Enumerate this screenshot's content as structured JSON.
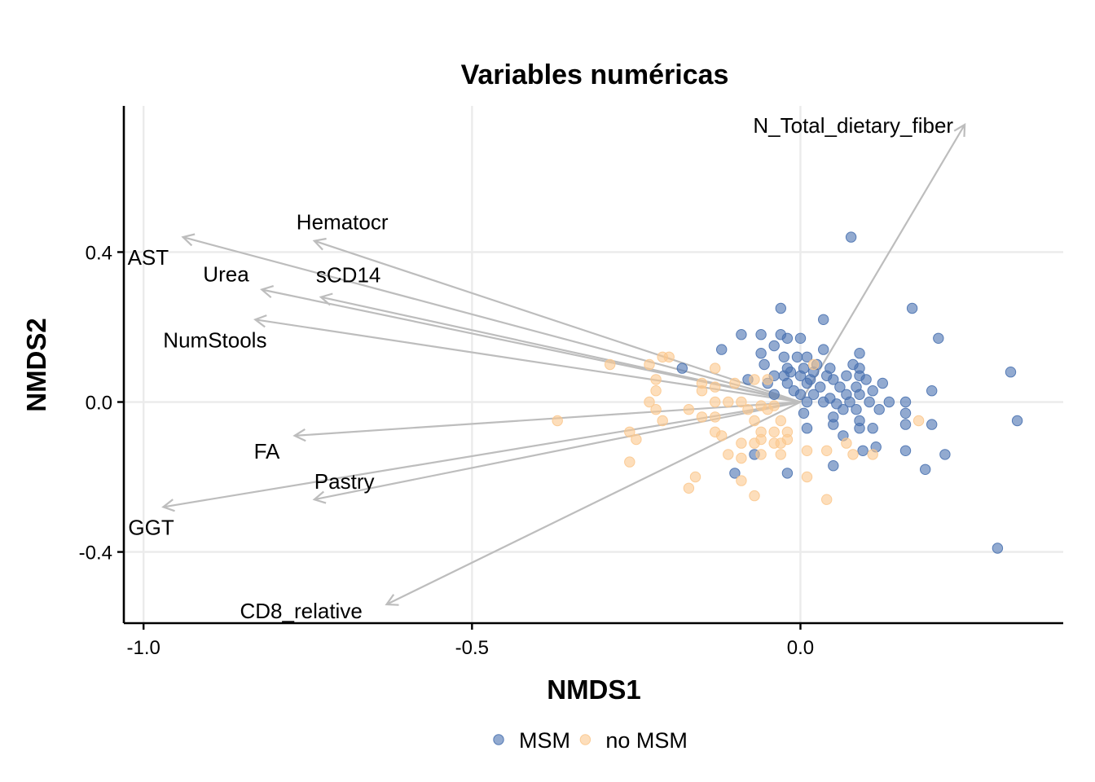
{
  "chart_data": {
    "type": "scatter",
    "title": "Variables numéricas",
    "xlabel": "NMDS1",
    "ylabel": "NMDS2",
    "xlim": [
      -1.03,
      0.4
    ],
    "ylim": [
      -0.59,
      0.79
    ],
    "x_ticks": [
      {
        "value": -1.0,
        "label": "-1.0"
      },
      {
        "value": -0.5,
        "label": "-0.5"
      },
      {
        "value": 0.0,
        "label": "0.0"
      }
    ],
    "y_ticks": [
      {
        "value": -0.4,
        "label": "-0.4"
      },
      {
        "value": 0.0,
        "label": "0.0"
      },
      {
        "value": 0.4,
        "label": "0.4"
      }
    ],
    "grid": true,
    "legend": {
      "position": "bottom"
    },
    "series": [
      {
        "name": "MSM",
        "color": "#4a72b0",
        "points": [
          [
            0.077,
            0.44
          ],
          [
            0.17,
            0.25
          ],
          [
            0.035,
            0.22
          ],
          [
            -0.03,
            0.25
          ],
          [
            0.21,
            0.17
          ],
          [
            0.32,
            0.08
          ],
          [
            0.33,
            -0.05
          ],
          [
            0.3,
            -0.39
          ],
          [
            -0.09,
            0.18
          ],
          [
            -0.06,
            0.18
          ],
          [
            -0.03,
            0.18
          ],
          [
            -0.02,
            0.17
          ],
          [
            0.0,
            0.17
          ],
          [
            -0.04,
            0.15
          ],
          [
            0.035,
            0.14
          ],
          [
            -0.12,
            0.14
          ],
          [
            -0.18,
            0.09
          ],
          [
            -0.06,
            0.13
          ],
          [
            -0.025,
            0.12
          ],
          [
            -0.005,
            0.12
          ],
          [
            0.01,
            0.12
          ],
          [
            0.09,
            0.13
          ],
          [
            0.08,
            0.1
          ],
          [
            0.09,
            0.09
          ],
          [
            0.025,
            0.1
          ],
          [
            -0.055,
            0.1
          ],
          [
            -0.02,
            0.09
          ],
          [
            -0.015,
            0.08
          ],
          [
            0.005,
            0.09
          ],
          [
            0.02,
            0.08
          ],
          [
            0.045,
            0.09
          ],
          [
            -0.04,
            0.07
          ],
          [
            -0.025,
            0.07
          ],
          [
            0.0,
            0.07
          ],
          [
            0.015,
            0.06
          ],
          [
            0.04,
            0.07
          ],
          [
            0.05,
            0.06
          ],
          [
            0.07,
            0.07
          ],
          [
            0.09,
            0.07
          ],
          [
            0.1,
            0.06
          ],
          [
            0.125,
            0.05
          ],
          [
            -0.08,
            0.06
          ],
          [
            -0.05,
            0.05
          ],
          [
            -0.02,
            0.05
          ],
          [
            0.01,
            0.05
          ],
          [
            0.03,
            0.04
          ],
          [
            0.06,
            0.04
          ],
          [
            0.085,
            0.04
          ],
          [
            0.11,
            0.03
          ],
          [
            -0.01,
            0.03
          ],
          [
            -0.04,
            0.02
          ],
          [
            0.0,
            0.02
          ],
          [
            0.02,
            0.02
          ],
          [
            0.045,
            0.01
          ],
          [
            0.07,
            0.02
          ],
          [
            0.09,
            0.02
          ],
          [
            0.16,
            0.0
          ],
          [
            0.2,
            0.03
          ],
          [
            0.135,
            0.0
          ],
          [
            0.105,
            0.0
          ],
          [
            0.075,
            0.0
          ],
          [
            0.055,
            -0.005
          ],
          [
            0.035,
            0.0
          ],
          [
            0.01,
            0.0
          ],
          [
            0.12,
            -0.02
          ],
          [
            0.085,
            -0.02
          ],
          [
            0.065,
            -0.02
          ],
          [
            0.16,
            -0.03
          ],
          [
            0.005,
            -0.03
          ],
          [
            0.05,
            -0.04
          ],
          [
            0.09,
            -0.05
          ],
          [
            0.16,
            -0.06
          ],
          [
            0.2,
            -0.06
          ],
          [
            0.11,
            -0.07
          ],
          [
            0.05,
            -0.06
          ],
          [
            0.09,
            -0.07
          ],
          [
            0.01,
            -0.07
          ],
          [
            0.065,
            -0.09
          ],
          [
            0.115,
            -0.12
          ],
          [
            0.095,
            -0.13
          ],
          [
            0.16,
            -0.13
          ],
          [
            0.22,
            -0.14
          ],
          [
            -0.07,
            -0.14
          ],
          [
            0.05,
            -0.17
          ],
          [
            -0.1,
            -0.19
          ],
          [
            -0.02,
            -0.19
          ],
          [
            0.19,
            -0.18
          ]
        ]
      },
      {
        "name": "no MSM",
        "color": "#fbc88e",
        "points": [
          [
            -0.2,
            0.12
          ],
          [
            -0.29,
            0.1
          ],
          [
            -0.23,
            0.1
          ],
          [
            -0.13,
            0.09
          ],
          [
            -0.22,
            0.06
          ],
          [
            -0.15,
            0.05
          ],
          [
            -0.13,
            0.04
          ],
          [
            -0.1,
            0.05
          ],
          [
            -0.07,
            0.06
          ],
          [
            -0.05,
            0.06
          ],
          [
            -0.22,
            0.03
          ],
          [
            -0.15,
            0.03
          ],
          [
            -0.23,
            0.0
          ],
          [
            -0.22,
            -0.02
          ],
          [
            -0.17,
            -0.02
          ],
          [
            -0.13,
            0.0
          ],
          [
            -0.09,
            0.0
          ],
          [
            -0.11,
            0.0
          ],
          [
            -0.08,
            -0.02
          ],
          [
            -0.06,
            -0.01
          ],
          [
            -0.05,
            -0.02
          ],
          [
            -0.04,
            -0.01
          ],
          [
            -0.15,
            -0.04
          ],
          [
            -0.13,
            -0.04
          ],
          [
            -0.21,
            -0.05
          ],
          [
            -0.37,
            -0.05
          ],
          [
            -0.07,
            -0.05
          ],
          [
            -0.03,
            -0.05
          ],
          [
            -0.26,
            -0.08
          ],
          [
            -0.13,
            -0.08
          ],
          [
            -0.12,
            -0.09
          ],
          [
            -0.06,
            -0.08
          ],
          [
            -0.04,
            -0.08
          ],
          [
            -0.02,
            -0.08
          ],
          [
            -0.06,
            -0.1
          ],
          [
            -0.02,
            -0.1
          ],
          [
            -0.09,
            -0.11
          ],
          [
            -0.07,
            -0.11
          ],
          [
            -0.04,
            -0.11
          ],
          [
            -0.03,
            -0.11
          ],
          [
            -0.25,
            -0.1
          ],
          [
            -0.11,
            -0.14
          ],
          [
            -0.09,
            -0.15
          ],
          [
            -0.06,
            -0.14
          ],
          [
            -0.03,
            -0.14
          ],
          [
            0.01,
            -0.13
          ],
          [
            0.04,
            -0.13
          ],
          [
            0.08,
            -0.14
          ],
          [
            0.11,
            -0.14
          ],
          [
            -0.26,
            -0.16
          ],
          [
            -0.16,
            -0.2
          ],
          [
            -0.09,
            -0.21
          ],
          [
            0.01,
            -0.2
          ],
          [
            -0.17,
            -0.23
          ],
          [
            -0.07,
            -0.25
          ],
          [
            0.04,
            -0.26
          ],
          [
            0.18,
            -0.05
          ],
          [
            0.07,
            -0.11
          ],
          [
            0.02,
            0.1
          ],
          [
            -0.21,
            0.12
          ]
        ]
      }
    ],
    "vectors": [
      {
        "label": "N_Total_dietary_fiber",
        "x": 0.25,
        "y": 0.74
      },
      {
        "label": "Hematocr",
        "x": -0.74,
        "y": 0.43
      },
      {
        "label": "AST",
        "x": -0.94,
        "y": 0.44
      },
      {
        "label": "Urea",
        "x": -0.82,
        "y": 0.3
      },
      {
        "label": "sCD14",
        "x": -0.73,
        "y": 0.28
      },
      {
        "label": "NumStools",
        "x": -0.83,
        "y": 0.22
      },
      {
        "label": "FA",
        "x": -0.77,
        "y": -0.09
      },
      {
        "label": "Pastry",
        "x": -0.74,
        "y": -0.26
      },
      {
        "label": "GGT",
        "x": -0.97,
        "y": -0.28
      },
      {
        "label": "CD8_relative",
        "x": -0.63,
        "y": -0.54
      }
    ]
  }
}
